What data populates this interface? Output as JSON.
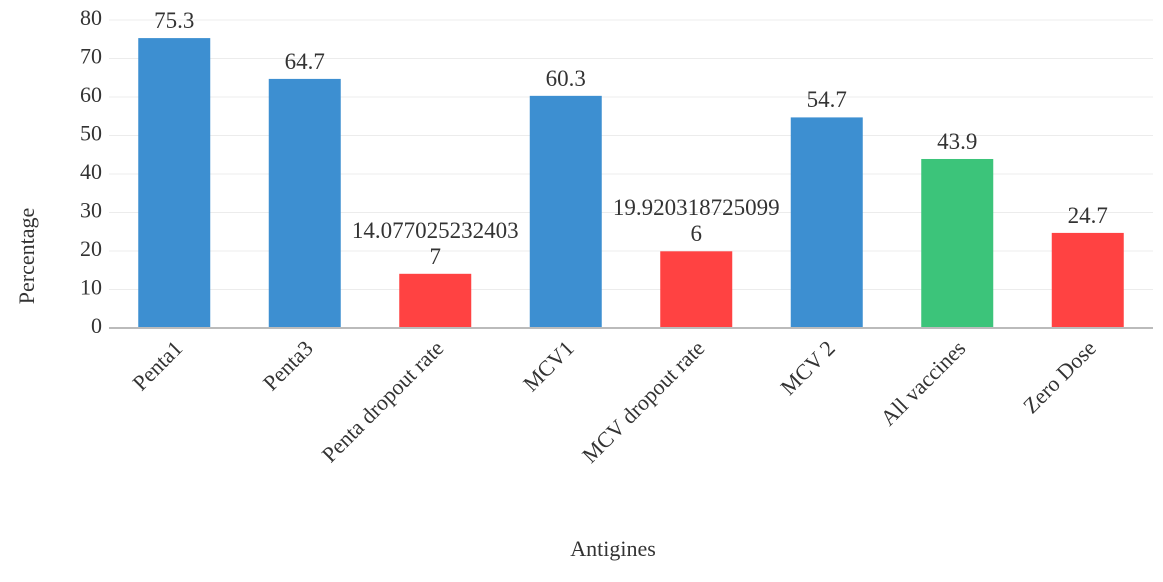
{
  "chart_data": {
    "type": "bar",
    "x_label": "Antigines",
    "y_label": "Percentage",
    "categories": [
      "Penta1",
      "Penta3",
      "Penta dropout rate",
      "MCV1",
      "MCV dropout rate",
      "MCV 2",
      "All vaccines",
      "Zero Dose"
    ],
    "values": [
      75.3,
      64.7,
      14.0770252324037,
      60.3,
      19.9203187250996,
      54.7,
      43.9,
      24.7
    ],
    "colors": [
      "#3d8fd1",
      "#3d8fd1",
      "#ff4242",
      "#3d8fd1",
      "#ff4242",
      "#3d8fd1",
      "#3cc47a",
      "#ff4242"
    ],
    "ylim": [
      0,
      80
    ],
    "yticks": [
      0,
      10,
      20,
      30,
      40,
      50,
      60,
      70,
      80
    ],
    "grid": true
  }
}
